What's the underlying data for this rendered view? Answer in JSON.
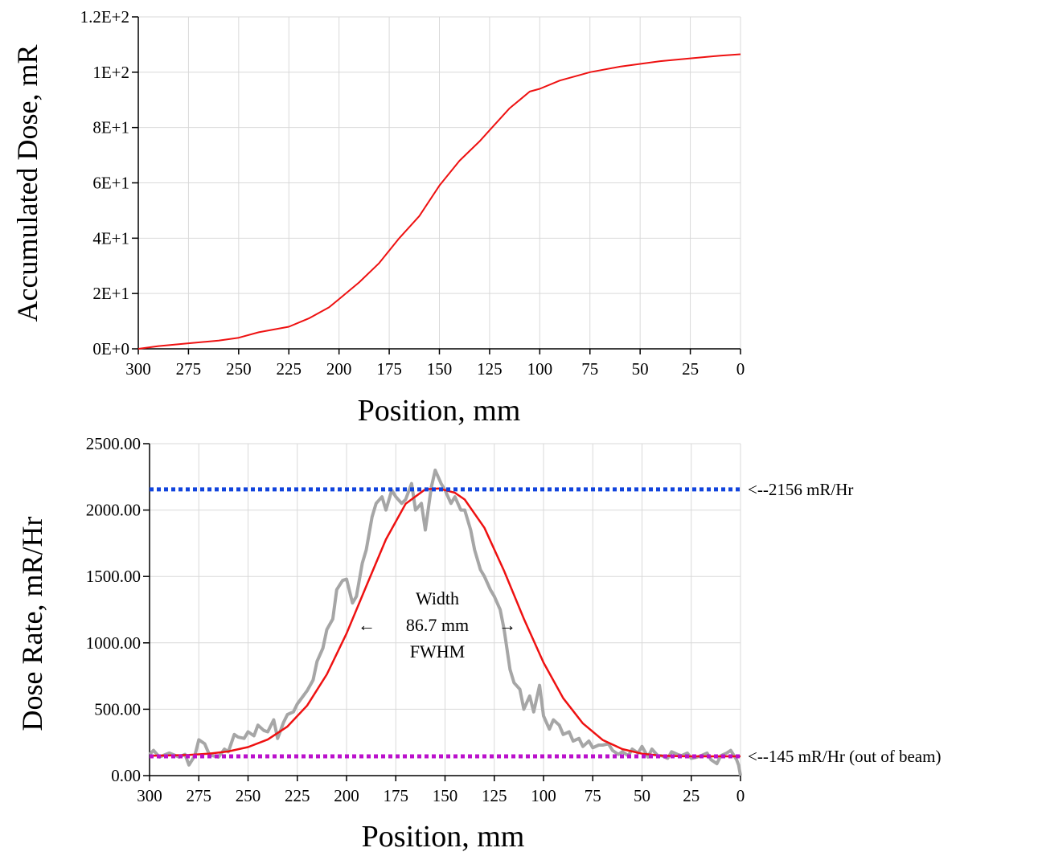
{
  "colors": {
    "dose_line": "#ee1111",
    "fit_line": "#a6a6a6",
    "peak_line": "#1144dd",
    "background_line": "#bb11cc",
    "grid": "#d9d9d9",
    "axis": "#000000"
  },
  "chart_data": [
    {
      "type": "line",
      "xlabel": "Position, mm",
      "ylabel": "Accumulated Dose, mR",
      "xlim": [
        300,
        0
      ],
      "x_reversed": true,
      "ylim": [
        0,
        120
      ],
      "x_ticks": [
        300,
        275,
        250,
        225,
        200,
        175,
        150,
        125,
        100,
        75,
        50,
        25,
        0
      ],
      "y_ticks": [
        0,
        20,
        40,
        60,
        80,
        100,
        120
      ],
      "y_tick_labels": [
        "0E+0",
        "2E+1",
        "4E+1",
        "6E+1",
        "8E+1",
        "1E+2",
        "1.2E+2"
      ],
      "grid": true,
      "series": [
        {
          "x": [
            300,
            290,
            275,
            260,
            250,
            240,
            225,
            215,
            205,
            200,
            190,
            180,
            170,
            160,
            150,
            140,
            130,
            125,
            120,
            115,
            110,
            105,
            100,
            90,
            80,
            75,
            60,
            50,
            40,
            25,
            10,
            0
          ],
          "y": [
            0,
            1,
            2,
            3,
            4,
            6,
            8,
            11,
            15,
            18,
            24,
            31,
            40,
            48,
            59,
            68,
            75,
            79,
            83,
            87,
            90,
            93,
            94,
            97,
            99,
            100,
            102,
            103,
            104,
            105,
            106,
            106.5
          ]
        }
      ]
    },
    {
      "type": "line",
      "xlabel": "Position, mm",
      "ylabel": "Dose Rate, mR/Hr",
      "xlim": [
        300,
        0
      ],
      "x_reversed": true,
      "ylim": [
        0,
        2500
      ],
      "x_ticks": [
        300,
        275,
        250,
        225,
        200,
        175,
        150,
        125,
        100,
        75,
        50,
        25,
        0
      ],
      "y_ticks": [
        0,
        500,
        1000,
        1500,
        2000,
        2500
      ],
      "y_tick_labels": [
        "0.00",
        "500.00",
        "1000.00",
        "1500.00",
        "2000.00",
        "2500.00"
      ],
      "grid": true,
      "series": [
        {
          "x": [
            300,
            298,
            295,
            290,
            285,
            282,
            280,
            277,
            275,
            272,
            270,
            268,
            265,
            262,
            260,
            257,
            255,
            252,
            250,
            247,
            245,
            242,
            240,
            237,
            235,
            232,
            230,
            227,
            225,
            222,
            220,
            217,
            215,
            212,
            210,
            207,
            205,
            202,
            200,
            197,
            195,
            192,
            190,
            187,
            185,
            182,
            180,
            177,
            175,
            172,
            170,
            167,
            165,
            162,
            160,
            157,
            155,
            152,
            150,
            147,
            145,
            142,
            140,
            137,
            135,
            132,
            130,
            127,
            125,
            122,
            120,
            117,
            115,
            112,
            110,
            107,
            105,
            102,
            100,
            97,
            95,
            92,
            90,
            87,
            85,
            82,
            80,
            77,
            75,
            72,
            70,
            67,
            65,
            62,
            60,
            57,
            55,
            52,
            50,
            47,
            45,
            42,
            40,
            37,
            35,
            32,
            30,
            27,
            25,
            22,
            20,
            17,
            15,
            12,
            10,
            7,
            5,
            2,
            1,
            0
          ],
          "y": [
            160,
            190,
            140,
            170,
            140,
            160,
            80,
            150,
            270,
            240,
            170,
            150,
            140,
            200,
            180,
            310,
            290,
            280,
            330,
            300,
            380,
            340,
            330,
            420,
            280,
            400,
            460,
            480,
            540,
            600,
            640,
            720,
            860,
            960,
            1100,
            1180,
            1400,
            1470,
            1480,
            1300,
            1350,
            1600,
            1700,
            1950,
            2050,
            2100,
            2000,
            2150,
            2100,
            2050,
            2080,
            2200,
            2000,
            2050,
            1850,
            2170,
            2300,
            2200,
            2150,
            2050,
            2100,
            2000,
            2000,
            1850,
            1700,
            1550,
            1500,
            1400,
            1350,
            1250,
            1100,
            800,
            700,
            650,
            500,
            600,
            480,
            680,
            450,
            350,
            420,
            380,
            310,
            330,
            260,
            280,
            220,
            260,
            210,
            230,
            230,
            240,
            190,
            160,
            180,
            150,
            200,
            170,
            220,
            140,
            200,
            150,
            150,
            130,
            180,
            160,
            150,
            170,
            130,
            140,
            150,
            170,
            120,
            90,
            150,
            170,
            190,
            120,
            80,
            0
          ]
        },
        {
          "x": [
            300,
            290,
            280,
            270,
            260,
            250,
            240,
            230,
            220,
            210,
            200,
            190,
            180,
            170,
            160,
            153,
            145,
            140,
            130,
            120,
            110,
            100,
            90,
            80,
            70,
            60,
            50,
            40,
            30,
            20,
            10,
            0
          ],
          "y": [
            150,
            152,
            156,
            165,
            182,
            215,
            272,
            370,
            528,
            763,
            1070,
            1426,
            1779,
            2047,
            2156,
            2162,
            2130,
            2079,
            1866,
            1541,
            1182,
            851,
            583,
            393,
            269,
            200,
            165,
            150,
            146,
            145,
            145,
            145
          ]
        }
      ],
      "reference_lines": [
        {
          "value": 2156,
          "label": "<--2156 mR/Hr"
        },
        {
          "value": 145,
          "label": "<--145 mR/Hr (out of beam)"
        }
      ],
      "annotation": {
        "lines": [
          "Width",
          "86.7 mm",
          "FWHM"
        ],
        "left_arrow": "←",
        "right_arrow": "→"
      }
    }
  ]
}
